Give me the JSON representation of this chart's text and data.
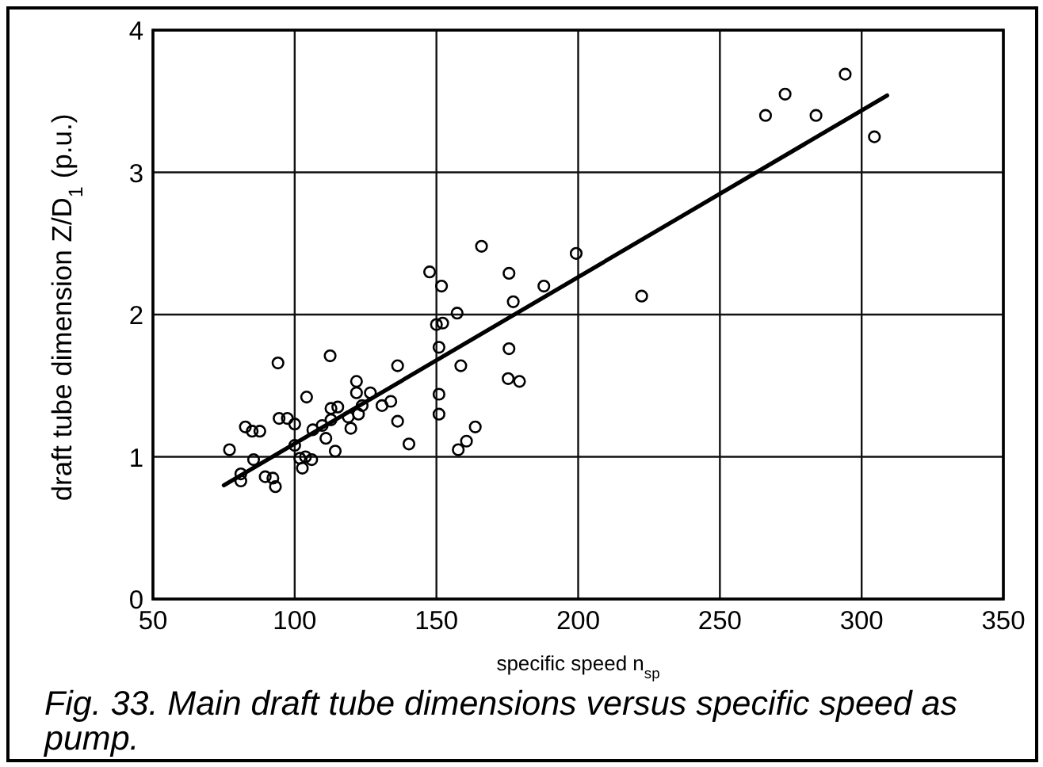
{
  "chart_data": {
    "type": "scatter",
    "xlabel": "specific speed n$_{sp}$",
    "ylabel": "draft tube dimension Z/D$_{1}$ (p.u.)",
    "annotations": [
      "Fig. 33. Main draft tube dimensions versus specific speed as pump."
    ],
    "xlim": [
      50,
      350
    ],
    "xticks": [
      50,
      100,
      150,
      200,
      250,
      300,
      350
    ],
    "ylim": [
      0,
      4
    ],
    "yticks": [
      0,
      1,
      2,
      3,
      4
    ],
    "grid": true,
    "marker": "circle",
    "series": [
      {
        "color": "#000000",
        "x": [
          77,
          81,
          81,
          82.6,
          85,
          87.7,
          85.5,
          89.6,
          92.3,
          93.2,
          94.1,
          94.5,
          97.4,
          100,
          100,
          101.8,
          102.7,
          103.8,
          106,
          104.2,
          106.4,
          109.7,
          111,
          112.5,
          112.8,
          115.2,
          114.3,
          112.8,
          118.9,
          119.8,
          121.8,
          121.8,
          122.5,
          123.8,
          126.7,
          130.8,
          133.9,
          136.3,
          136.3,
          140.3,
          150,
          152.2,
          150.9,
          150.9,
          150.9,
          151.8,
          157.3,
          158.6,
          157.7,
          160.6,
          163.7,
          175.6,
          175.3,
          179.3,
          177.1,
          147.6,
          165.9,
          175.6,
          187.9,
          199.3,
          222.4,
          266.1,
          273,
          283.9,
          294.2,
          304.5
        ],
        "values": [
          1.05,
          0.88,
          0.83,
          1.21,
          1.18,
          1.18,
          0.98,
          0.86,
          0.85,
          0.79,
          1.66,
          1.27,
          1.27,
          1.23,
          1.08,
          0.99,
          0.92,
          1.0,
          0.98,
          1.42,
          1.19,
          1.22,
          1.13,
          1.71,
          1.34,
          1.35,
          1.04,
          1.26,
          1.28,
          1.2,
          1.53,
          1.45,
          1.3,
          1.36,
          1.45,
          1.36,
          1.39,
          1.64,
          1.25,
          1.09,
          1.93,
          1.94,
          1.77,
          1.44,
          1.3,
          2.2,
          2.01,
          1.64,
          1.05,
          1.11,
          1.21,
          1.76,
          1.55,
          1.53,
          2.09,
          2.3,
          2.48,
          2.29,
          2.2,
          2.43,
          2.13,
          3.4,
          3.55,
          3.4,
          3.69,
          3.25
        ]
      },
      {
        "type": "line",
        "color": "#000000",
        "marker": "none",
        "line_style": "solid",
        "x": [
          75,
          309
        ],
        "values": [
          0.8,
          3.54
        ]
      }
    ]
  }
}
